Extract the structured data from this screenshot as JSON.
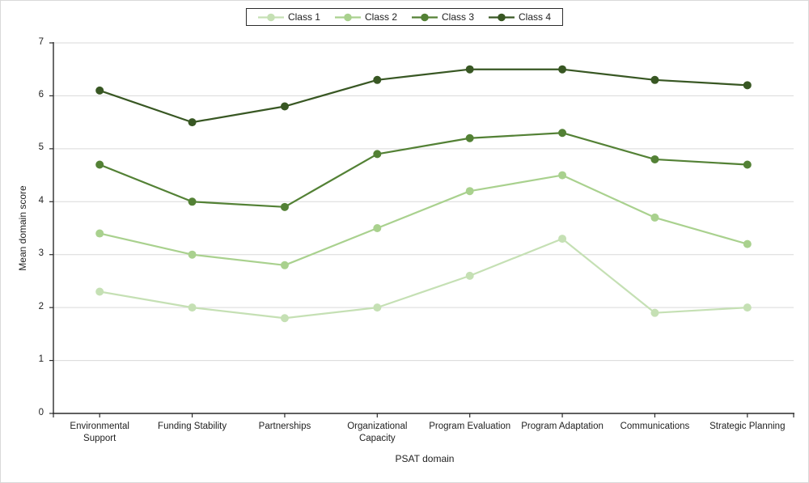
{
  "chart_data": {
    "type": "line",
    "title": "",
    "xlabel": "PSAT domain",
    "ylabel": "Mean domain score",
    "ylim": [
      0,
      7
    ],
    "yticks": [
      0,
      1,
      2,
      3,
      4,
      5,
      6,
      7
    ],
    "grid": true,
    "legend_position": "top-center",
    "categories": [
      "Environmental Support",
      "Funding Stability",
      "Partnerships",
      "Organizational Capacity",
      "Program Evaluation",
      "Program Adaptation",
      "Communications",
      "Strategic Planning"
    ],
    "series": [
      {
        "name": "Class 1",
        "color": "#c5e0b4",
        "values": [
          2.3,
          2.0,
          1.8,
          2.0,
          2.6,
          3.3,
          1.9,
          2.0
        ]
      },
      {
        "name": "Class 2",
        "color": "#a9d18e",
        "values": [
          3.4,
          3.0,
          2.8,
          3.5,
          4.2,
          4.5,
          3.7,
          3.2
        ]
      },
      {
        "name": "Class 3",
        "color": "#538135",
        "values": [
          4.7,
          4.0,
          3.9,
          4.9,
          5.2,
          5.3,
          4.8,
          4.7
        ]
      },
      {
        "name": "Class 4",
        "color": "#385723",
        "values": [
          6.1,
          5.5,
          5.8,
          6.3,
          6.5,
          6.5,
          6.3,
          6.2
        ]
      }
    ]
  },
  "colors": {
    "background": "#ffffff",
    "canvas_border": "#d9d9d9",
    "gridline": "#d9d9d9",
    "axis": "#2b2b2b",
    "text": "#1f1f1f",
    "legend_border": "#2b2b2b"
  }
}
